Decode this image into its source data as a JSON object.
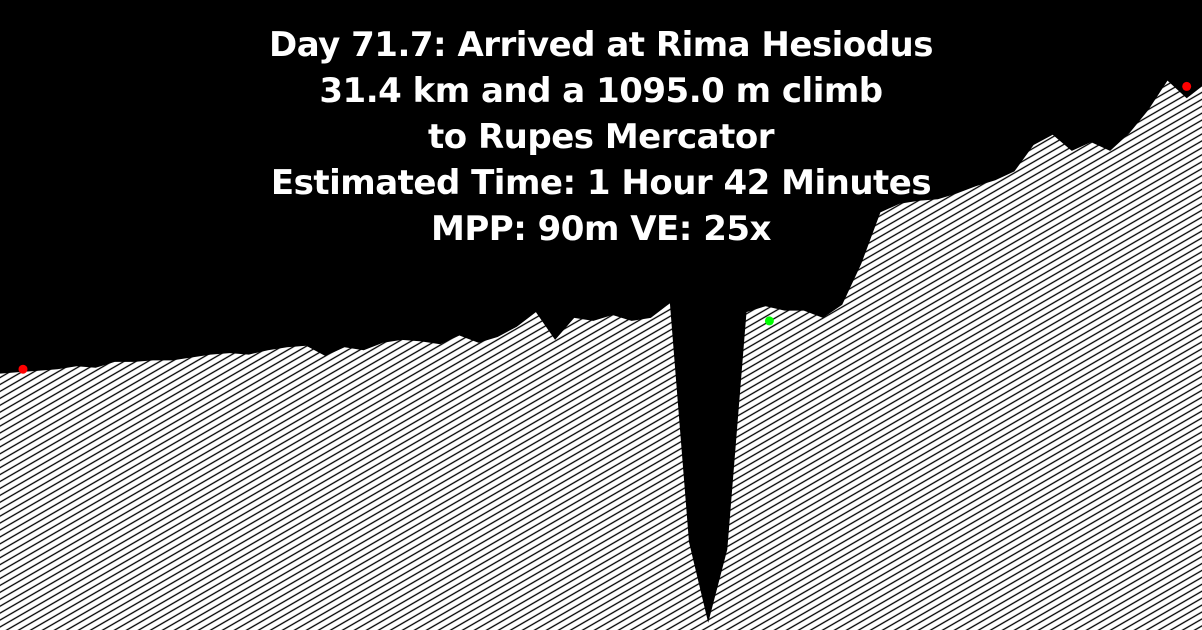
{
  "caption": {
    "line1": "Day 71.7: Arrived at Rima Hesiodus",
    "line2": "31.4 km and a 1095.0 m climb",
    "line3": "to Rupes Mercator",
    "line4": "Estimated Time: 1 Hour 42 Minutes",
    "line5": "MPP: 90m VE: 25x"
  },
  "chart_data": {
    "type": "area",
    "title": "",
    "xlabel": "",
    "ylabel": "",
    "grid": false,
    "legend": "none",
    "x": [
      0,
      0.5,
      1,
      1.5,
      2,
      2.5,
      3,
      3.5,
      4,
      4.5,
      5,
      5.5,
      6,
      6.5,
      7,
      7.5,
      8,
      8.5,
      9,
      9.5,
      10,
      10.5,
      11,
      11.5,
      12,
      12.5,
      13,
      13.5,
      14,
      14.5,
      15,
      15.5,
      16,
      16.5,
      17,
      17.5,
      18,
      18.5,
      19,
      19.5,
      20,
      20.5,
      21,
      21.5,
      22,
      22.5,
      23,
      23.5,
      24,
      24.5,
      25,
      25.5,
      26,
      26.5,
      27,
      27.5,
      28,
      28.5,
      29,
      29.5,
      30,
      30.5,
      31,
      31.4
    ],
    "values": [
      0,
      10,
      20,
      30,
      50,
      40,
      80,
      80,
      90,
      90,
      110,
      130,
      140,
      130,
      160,
      180,
      190,
      120,
      180,
      160,
      210,
      230,
      220,
      200,
      260,
      210,
      250,
      320,
      420,
      230,
      380,
      360,
      400,
      360,
      380,
      480,
      -1150,
      -1700,
      -1200,
      420,
      460,
      430,
      430,
      380,
      470,
      750,
      1100,
      1160,
      1180,
      1190,
      1230,
      1280,
      1320,
      1380,
      1560,
      1630,
      1520,
      1580,
      1520,
      1640,
      1800,
      2000,
      1880,
      1960
    ],
    "series": [
      {
        "name": "",
        "color": "#ffffff"
      }
    ],
    "markers": [
      {
        "x": 0.6,
        "y": 30,
        "color": "#ff0000"
      },
      {
        "x": 20.1,
        "y": 360,
        "color": "#00ff00"
      },
      {
        "x": 31.0,
        "y": 1960,
        "color": "#ff0000"
      }
    ],
    "xlim": [
      0,
      31.4
    ],
    "ylim": [
      -1750,
      2550
    ]
  }
}
